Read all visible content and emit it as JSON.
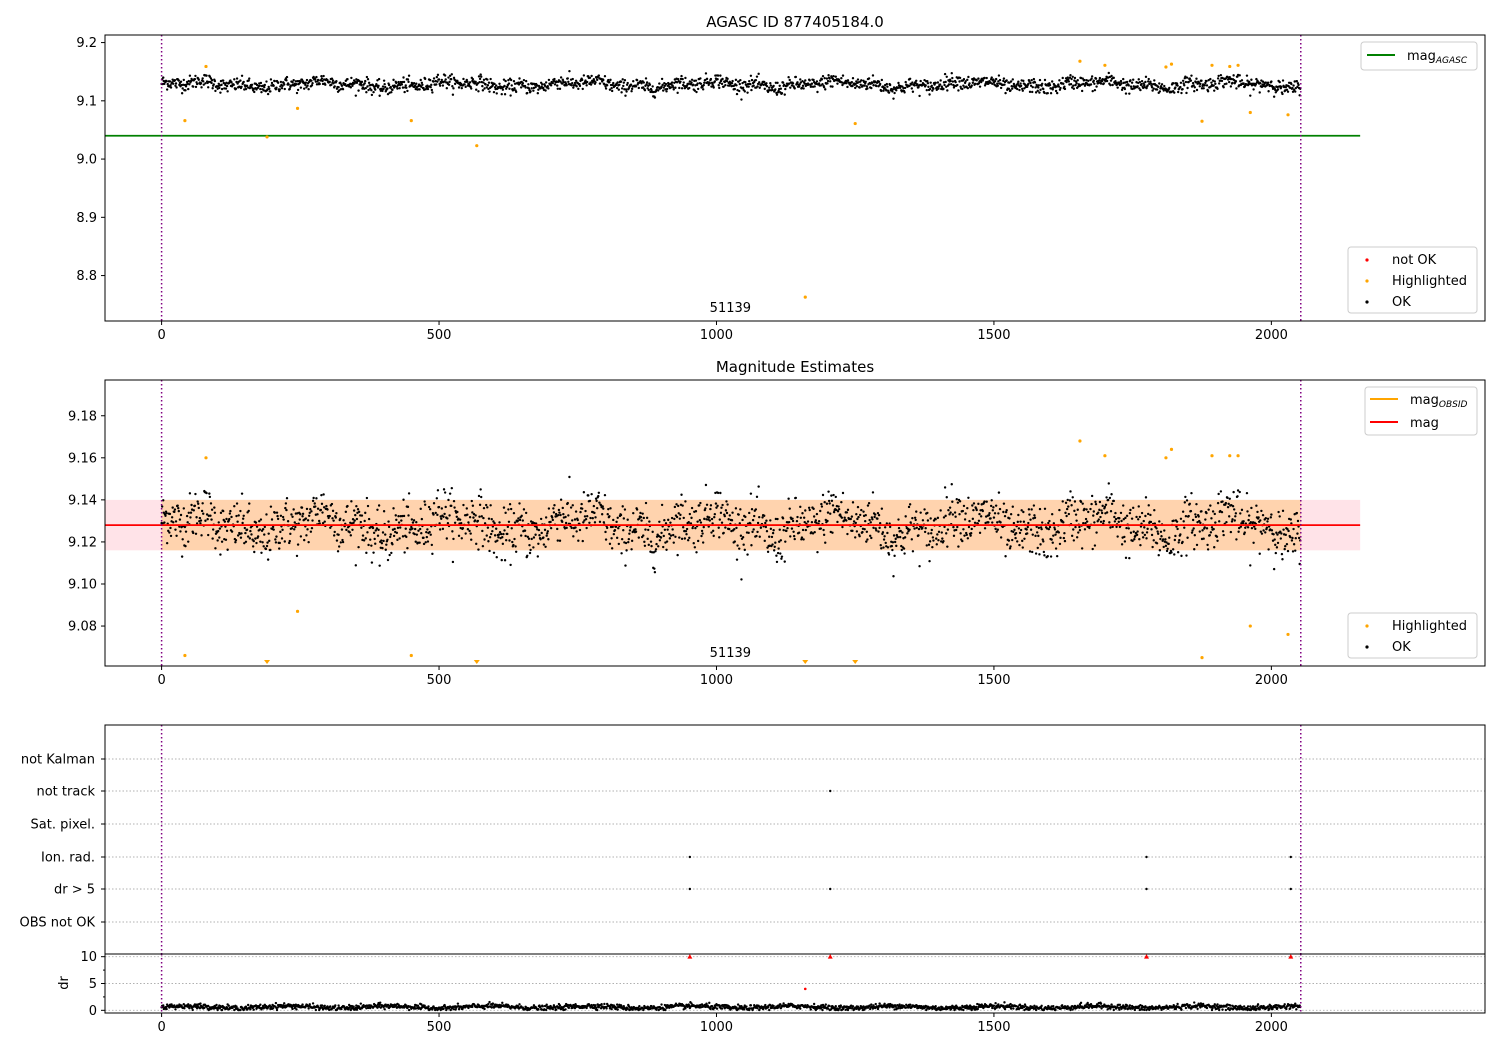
{
  "chart_data": [
    {
      "id": "top",
      "type": "scatter",
      "title": "AGASC ID 877405184.0",
      "xlim": [
        -102,
        2385
      ],
      "ylim": [
        8.722,
        9.213
      ],
      "xticks": [
        0,
        500,
        1000,
        1500,
        2000
      ],
      "yticks": [
        8.8,
        8.9,
        9.0,
        9.1,
        9.2
      ],
      "ytick_labels": [
        "8.8",
        "8.9",
        "9.0",
        "9.1",
        "9.2"
      ],
      "obsid_label": {
        "x": 1025,
        "text": "51139"
      },
      "obs_boundaries": [
        0,
        2053
      ],
      "hlines": [
        {
          "name": "mag$_{AGASC}$",
          "legend_main": "mag",
          "legend_sub": "AGASC",
          "y": 9.04,
          "x0": -102,
          "x1": 2160,
          "color": "#008000"
        }
      ],
      "ok_series": {
        "name": "OK",
        "color": "#000000",
        "n": 2053,
        "mean": 9.128,
        "amp": 0.0095,
        "noise": 0.0055
      },
      "highlighted": {
        "name": "Highlighted",
        "color": "#ffa500",
        "points": [
          [
            42,
            9.066
          ],
          [
            80,
            9.159
          ],
          [
            190,
            9.038
          ],
          [
            245,
            9.087
          ],
          [
            450,
            9.066
          ],
          [
            568,
            9.023
          ],
          [
            1160,
            8.763
          ],
          [
            1250,
            9.061
          ],
          [
            1655,
            9.168
          ],
          [
            1700,
            9.161
          ],
          [
            1810,
            9.158
          ],
          [
            1820,
            9.163
          ],
          [
            1875,
            9.065
          ],
          [
            1893,
            9.161
          ],
          [
            1925,
            9.159
          ],
          [
            1940,
            9.161
          ],
          [
            1962,
            9.08
          ],
          [
            2030,
            9.076
          ]
        ]
      },
      "not_ok": {
        "name": "not OK",
        "color": "#ff0000",
        "points": []
      },
      "legend_lines": [
        "mag_AGASC"
      ],
      "legend_points": [
        "not OK",
        "Highlighted",
        "OK"
      ]
    },
    {
      "id": "mid",
      "type": "scatter",
      "title": "Magnitude Estimates",
      "xlim": [
        -102,
        2385
      ],
      "ylim": [
        9.061,
        9.197
      ],
      "xticks": [
        0,
        500,
        1000,
        1500,
        2000
      ],
      "yticks": [
        9.08,
        9.1,
        9.12,
        9.14,
        9.16,
        9.18
      ],
      "ytick_labels": [
        "9.08",
        "9.10",
        "9.12",
        "9.14",
        "9.16",
        "9.18"
      ],
      "obsid_label": {
        "x": 1025,
        "text": "51139"
      },
      "obs_boundaries": [
        0,
        2053
      ],
      "bands": [
        {
          "y0": 9.116,
          "y1": 9.14,
          "x0": -102,
          "x1": 2160,
          "color": "#ffc0cb",
          "opacity": 0.45
        },
        {
          "y0": 9.116,
          "y1": 9.14,
          "x0": 0,
          "x1": 2053,
          "color": "#ffa500",
          "opacity": 0.25
        }
      ],
      "hlines": [
        {
          "name": "mag$_{OBSID}$",
          "legend_main": "mag",
          "legend_sub": "OBSID",
          "y": 9.128,
          "x0": 0,
          "x1": 2053,
          "color": "#ffa500"
        },
        {
          "name": "mag",
          "legend_main": "mag",
          "legend_sub": "",
          "y": 9.128,
          "x0": -102,
          "x1": 2160,
          "color": "#ff0000"
        }
      ],
      "ok_series": {
        "name": "OK",
        "color": "#000000",
        "n": 2053,
        "mean": 9.128,
        "amp": 0.0095,
        "noise": 0.0055
      },
      "highlighted": {
        "name": "Highlighted",
        "color": "#ffa500",
        "points": [
          [
            42,
            9.066
          ],
          [
            80,
            9.16
          ],
          [
            245,
            9.087
          ],
          [
            450,
            9.066
          ],
          [
            1655,
            9.168
          ],
          [
            1700,
            9.161
          ],
          [
            1810,
            9.16
          ],
          [
            1820,
            9.164
          ],
          [
            1875,
            9.065
          ],
          [
            1893,
            9.161
          ],
          [
            1925,
            9.161
          ],
          [
            1940,
            9.161
          ],
          [
            1962,
            9.08
          ],
          [
            2030,
            9.076
          ]
        ]
      },
      "offscale_low": [
        190,
        568,
        1160,
        1250
      ],
      "legend_lines": [
        "mag_OBSID",
        "mag"
      ],
      "legend_points": [
        "Highlighted",
        "OK"
      ]
    },
    {
      "id": "flags",
      "type": "scatter",
      "xlim": [
        -102,
        2385
      ],
      "categories": [
        "not Kalman",
        "not track",
        "Sat. pixel.",
        "Ion. rad.",
        "dr > 5",
        "OBS not OK"
      ],
      "flag_points": {
        "not track": [
          1205
        ],
        "Ion. rad.": [
          952,
          1775,
          2035
        ],
        "dr > 5": [
          952,
          1205,
          1775,
          2035
        ]
      },
      "obs_boundaries": [
        0,
        2053
      ]
    },
    {
      "id": "dr",
      "type": "scatter",
      "ylabel": "dr",
      "xlim": [
        -102,
        2385
      ],
      "ylim": [
        -0.5,
        10.5
      ],
      "xticks": [
        0,
        500,
        1000,
        1500,
        2000
      ],
      "yticks": [
        0,
        5,
        10
      ],
      "ytick_labels": [
        "0",
        "5",
        "10"
      ],
      "obs_boundaries": [
        0,
        2053
      ],
      "ok_series": {
        "name": "dr",
        "color": "#000000",
        "n": 2053,
        "mean": 0.6,
        "noise": 0.25
      },
      "capped": {
        "color": "#ff0000",
        "x": [
          952,
          1205,
          1775,
          2035
        ],
        "y": 10
      },
      "outliers": [
        [
          1160,
          4
        ]
      ]
    }
  ],
  "legend_labels": {
    "not_ok": "not OK",
    "highlighted": "Highlighted",
    "ok": "OK"
  }
}
